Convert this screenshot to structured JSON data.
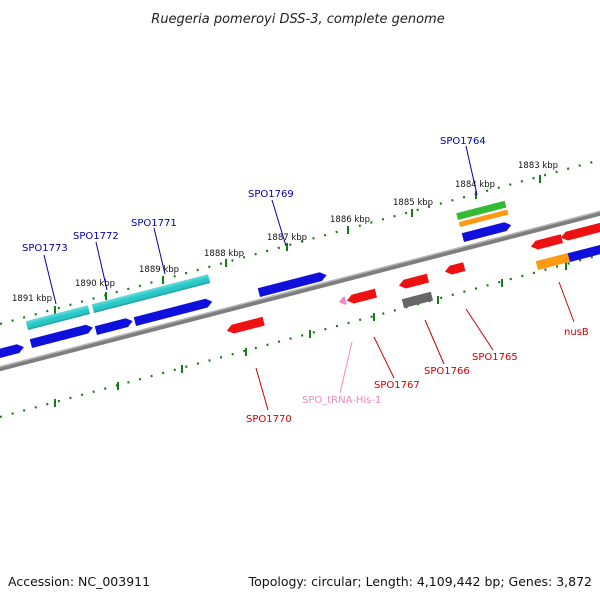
{
  "title": "Ruegeria pomeroyi DSS-3, complete genome",
  "footer": {
    "accession": "Accession: NC_003911",
    "summary": "Topology: circular; Length: 4,109,442 bp; Genes: 3,872"
  },
  "colors": {
    "backbone": "#8c8c8c",
    "tick": "#1a7a1a",
    "forward_label": "#0000aa",
    "reverse_label": "#cc0000",
    "trna_label": "#ee88bb",
    "cds_blue": "#1010dd",
    "cds_cyan": "#20c8c8",
    "cds_red": "#ee1111",
    "cds_green": "#33bb33",
    "cds_orange": "#ff9911",
    "cds_gray": "#666666",
    "trna_pink": "#ee88cc"
  },
  "ticks": [
    {
      "label": "1891 kbp"
    },
    {
      "label": "1890 kbp"
    },
    {
      "label": "1889 kbp"
    },
    {
      "label": "1888 kbp"
    },
    {
      "label": "1887 kbp"
    },
    {
      "label": "1886 kbp"
    },
    {
      "label": "1885 kbp"
    },
    {
      "label": "1884 kbp"
    },
    {
      "label": "1883 kbp"
    }
  ],
  "gene_labels": [
    {
      "name": "SPO1773",
      "strand": "forward"
    },
    {
      "name": "SPO1772",
      "strand": "forward"
    },
    {
      "name": "SPO1771",
      "strand": "forward"
    },
    {
      "name": "SPO1769",
      "strand": "forward"
    },
    {
      "name": "SPO1764",
      "strand": "forward"
    },
    {
      "name": "SPO1770",
      "strand": "reverse"
    },
    {
      "name": "SPO_tRNA-His-1",
      "strand": "trna"
    },
    {
      "name": "SPO1767",
      "strand": "reverse"
    },
    {
      "name": "SPO1766",
      "strand": "reverse"
    },
    {
      "name": "SPO1765",
      "strand": "reverse"
    },
    {
      "name": "nusB",
      "strand": "reverse"
    }
  ]
}
